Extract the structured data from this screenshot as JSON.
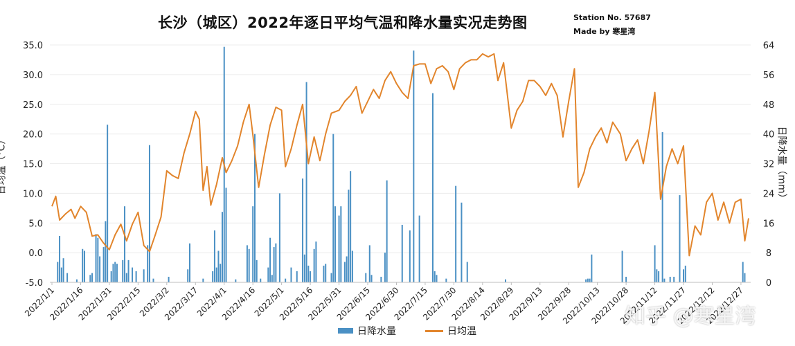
{
  "chart_title": "长沙（城区）2022年逐日平均气温和降水量实况走势图",
  "station_line": "Station No. 57687",
  "maker_line": "Made by 寒星湾",
  "watermark": "知乎 @寒星湾",
  "chart_data": {
    "type": "bar+line",
    "title": "长沙（城区）2022年逐日平均气温和降水量实况走势图",
    "y_left_label": "日均温（°C）",
    "y_right_label": "日降水量（mm）",
    "y_left_ticks": [
      "-5.0",
      "0.0",
      "5.0",
      "10.0",
      "15.0",
      "20.0",
      "25.0",
      "30.0",
      "35.0"
    ],
    "y_right_ticks": [
      "0",
      "8",
      "16",
      "24",
      "32",
      "40",
      "48",
      "56",
      "64"
    ],
    "y_left_range": [
      -5,
      35
    ],
    "y_right_range": [
      0,
      64
    ],
    "x_tick_labels": [
      "2022/1/1",
      "2022/1/16",
      "2022/1/31",
      "2022/2/15",
      "2022/3/2",
      "2022/3/17",
      "2022/4/1",
      "2022/4/16",
      "2022/5/1",
      "2022/5/16",
      "2022/5/31",
      "2022/6/15",
      "2022/6/30",
      "2022/7/15",
      "2022/7/30",
      "2022/8/14",
      "2022/8/29",
      "2022/9/13",
      "2022/9/28",
      "2022/10/13",
      "2022/10/28",
      "2022/11/12",
      "2022/11/27",
      "2022/12/12",
      "2022/12/27"
    ],
    "legend": [
      "日降水量",
      "日均温"
    ],
    "colors": {
      "temperature": "#e2852c",
      "precipitation": "#4a90c4"
    },
    "series": [
      {
        "name": "日均温",
        "kind": "line",
        "axis": "left",
        "points": [
          [
            "2022/1/1",
            7.8
          ],
          [
            "2022/1/3",
            9.5
          ],
          [
            "2022/1/5",
            5.5
          ],
          [
            "2022/1/8",
            6.5
          ],
          [
            "2022/1/11",
            7.3
          ],
          [
            "2022/1/13",
            5.8
          ],
          [
            "2022/1/16",
            7.8
          ],
          [
            "2022/1/19",
            6.8
          ],
          [
            "2022/1/22",
            2.8
          ],
          [
            "2022/1/25",
            3.0
          ],
          [
            "2022/1/28",
            1.6
          ],
          [
            "2022/1/31",
            0.5
          ],
          [
            "2022/2/3",
            3.0
          ],
          [
            "2022/2/6",
            4.8
          ],
          [
            "2022/2/9",
            2.0
          ],
          [
            "2022/2/12",
            4.8
          ],
          [
            "2022/2/15",
            6.8
          ],
          [
            "2022/2/18",
            1.2
          ],
          [
            "2022/2/21",
            0.2
          ],
          [
            "2022/2/24",
            3.0
          ],
          [
            "2022/2/27",
            6.0
          ],
          [
            "2022/3/2",
            13.8
          ],
          [
            "2022/3/5",
            13.0
          ],
          [
            "2022/3/8",
            12.5
          ],
          [
            "2022/3/11",
            16.8
          ],
          [
            "2022/3/14",
            20.0
          ],
          [
            "2022/3/17",
            23.8
          ],
          [
            "2022/3/19",
            22.5
          ],
          [
            "2022/3/21",
            10.5
          ],
          [
            "2022/3/23",
            14.5
          ],
          [
            "2022/3/25",
            8.0
          ],
          [
            "2022/3/28",
            11.5
          ],
          [
            "2022/3/31",
            16.0
          ],
          [
            "2022/4/2",
            13.5
          ],
          [
            "2022/4/5",
            15.5
          ],
          [
            "2022/4/8",
            18.0
          ],
          [
            "2022/4/11",
            22.0
          ],
          [
            "2022/4/14",
            25.0
          ],
          [
            "2022/4/16",
            19.8
          ],
          [
            "2022/4/19",
            11.0
          ],
          [
            "2022/4/22",
            16.5
          ],
          [
            "2022/4/25",
            21.5
          ],
          [
            "2022/4/28",
            24.5
          ],
          [
            "2022/5/1",
            24.0
          ],
          [
            "2022/5/3",
            14.5
          ],
          [
            "2022/5/6",
            17.5
          ],
          [
            "2022/5/9",
            21.5
          ],
          [
            "2022/5/12",
            25.0
          ],
          [
            "2022/5/15",
            15.0
          ],
          [
            "2022/5/18",
            19.5
          ],
          [
            "2022/5/21",
            15.5
          ],
          [
            "2022/5/24",
            20.0
          ],
          [
            "2022/5/27",
            23.5
          ],
          [
            "2022/5/31",
            24.0
          ],
          [
            "2022/6/3",
            25.5
          ],
          [
            "2022/6/6",
            26.5
          ],
          [
            "2022/6/9",
            28.0
          ],
          [
            "2022/6/12",
            23.5
          ],
          [
            "2022/6/15",
            25.5
          ],
          [
            "2022/6/18",
            27.5
          ],
          [
            "2022/6/21",
            26.0
          ],
          [
            "2022/6/24",
            29.0
          ],
          [
            "2022/6/27",
            30.5
          ],
          [
            "2022/6/30",
            28.5
          ],
          [
            "2022/7/3",
            27.0
          ],
          [
            "2022/7/6",
            26.0
          ],
          [
            "2022/7/9",
            31.5
          ],
          [
            "2022/7/12",
            31.8
          ],
          [
            "2022/7/15",
            31.8
          ],
          [
            "2022/7/18",
            28.5
          ],
          [
            "2022/7/21",
            31.0
          ],
          [
            "2022/7/24",
            31.5
          ],
          [
            "2022/7/27",
            30.5
          ],
          [
            "2022/7/30",
            27.5
          ],
          [
            "2022/8/2",
            31.0
          ],
          [
            "2022/8/5",
            32.0
          ],
          [
            "2022/8/8",
            32.5
          ],
          [
            "2022/8/11",
            32.5
          ],
          [
            "2022/8/14",
            33.5
          ],
          [
            "2022/8/17",
            33.0
          ],
          [
            "2022/8/20",
            33.5
          ],
          [
            "2022/8/22",
            29.0
          ],
          [
            "2022/8/25",
            32.0
          ],
          [
            "2022/8/29",
            21.0
          ],
          [
            "2022/9/1",
            24.0
          ],
          [
            "2022/9/4",
            25.5
          ],
          [
            "2022/9/7",
            29.0
          ],
          [
            "2022/9/10",
            29.0
          ],
          [
            "2022/9/13",
            28.0
          ],
          [
            "2022/9/16",
            26.5
          ],
          [
            "2022/9/19",
            28.5
          ],
          [
            "2022/9/22",
            26.5
          ],
          [
            "2022/9/25",
            19.5
          ],
          [
            "2022/9/28",
            25.5
          ],
          [
            "2022/10/1",
            31.0
          ],
          [
            "2022/10/3",
            11.0
          ],
          [
            "2022/10/6",
            13.5
          ],
          [
            "2022/10/9",
            17.5
          ],
          [
            "2022/10/12",
            19.5
          ],
          [
            "2022/10/15",
            21.0
          ],
          [
            "2022/10/18",
            18.5
          ],
          [
            "2022/10/21",
            22.0
          ],
          [
            "2022/10/25",
            20.0
          ],
          [
            "2022/10/28",
            15.5
          ],
          [
            "2022/10/31",
            17.5
          ],
          [
            "2022/11/3",
            19.0
          ],
          [
            "2022/11/6",
            15.0
          ],
          [
            "2022/11/9",
            20.5
          ],
          [
            "2022/11/12",
            27.0
          ],
          [
            "2022/11/15",
            9.0
          ],
          [
            "2022/11/18",
            14.5
          ],
          [
            "2022/11/21",
            17.5
          ],
          [
            "2022/11/24",
            15.0
          ],
          [
            "2022/11/27",
            18.0
          ],
          [
            "2022/11/30",
            -0.5
          ],
          [
            "2022/12/3",
            4.5
          ],
          [
            "2022/12/6",
            3.0
          ],
          [
            "2022/12/9",
            8.5
          ],
          [
            "2022/12/12",
            10.0
          ],
          [
            "2022/12/15",
            5.5
          ],
          [
            "2022/12/18",
            8.5
          ],
          [
            "2022/12/21",
            5.0
          ],
          [
            "2022/12/24",
            8.5
          ],
          [
            "2022/12/27",
            9.0
          ],
          [
            "2022/12/29",
            2.0
          ],
          [
            "2022/12/31",
            5.8
          ]
        ]
      },
      {
        "name": "日降水量",
        "kind": "bar",
        "axis": "right",
        "points": [
          [
            "2022/1/4",
            5.5
          ],
          [
            "2022/1/5",
            12.5
          ],
          [
            "2022/1/6",
            4.0
          ],
          [
            "2022/1/7",
            6.5
          ],
          [
            "2022/1/9",
            2.5
          ],
          [
            "2022/1/14",
            0.8
          ],
          [
            "2022/1/17",
            9.0
          ],
          [
            "2022/1/18",
            8.5
          ],
          [
            "2022/1/21",
            2.0
          ],
          [
            "2022/1/22",
            2.5
          ],
          [
            "2022/1/24",
            13.0
          ],
          [
            "2022/1/25",
            12.0
          ],
          [
            "2022/1/26",
            7.0
          ],
          [
            "2022/1/28",
            9.5
          ],
          [
            "2022/1/29",
            16.5
          ],
          [
            "2022/1/30",
            42.5
          ],
          [
            "2022/2/1",
            3.0
          ],
          [
            "2022/2/2",
            5.0
          ],
          [
            "2022/2/3",
            5.5
          ],
          [
            "2022/2/4",
            5.0
          ],
          [
            "2022/2/7",
            6.0
          ],
          [
            "2022/2/8",
            20.5
          ],
          [
            "2022/2/9",
            2.5
          ],
          [
            "2022/2/10",
            6.0
          ],
          [
            "2022/2/12",
            4.0
          ],
          [
            "2022/2/14",
            3.0
          ],
          [
            "2022/2/18",
            3.5
          ],
          [
            "2022/2/20",
            10.0
          ],
          [
            "2022/2/21",
            37.0
          ],
          [
            "2022/2/23",
            1.0
          ],
          [
            "2022/3/3",
            1.5
          ],
          [
            "2022/3/13",
            3.5
          ],
          [
            "2022/3/14",
            10.5
          ],
          [
            "2022/3/21",
            1.0
          ],
          [
            "2022/3/26",
            3.0
          ],
          [
            "2022/3/27",
            14.0
          ],
          [
            "2022/3/28",
            4.0
          ],
          [
            "2022/3/29",
            8.5
          ],
          [
            "2022/3/30",
            5.0
          ],
          [
            "2022/3/31",
            19.0
          ],
          [
            "2022/4/1",
            63.5
          ],
          [
            "2022/4/2",
            25.5
          ],
          [
            "2022/4/7",
            0.8
          ],
          [
            "2022/4/13",
            10.0
          ],
          [
            "2022/4/14",
            9.0
          ],
          [
            "2022/4/16",
            20.5
          ],
          [
            "2022/4/17",
            40.0
          ],
          [
            "2022/4/18",
            6.0
          ],
          [
            "2022/4/20",
            1.0
          ],
          [
            "2022/4/24",
            4.0
          ],
          [
            "2022/4/25",
            12.0
          ],
          [
            "2022/4/26",
            2.0
          ],
          [
            "2022/4/27",
            9.5
          ],
          [
            "2022/4/28",
            10.5
          ],
          [
            "2022/4/30",
            24.0
          ],
          [
            "2022/5/3",
            1.0
          ],
          [
            "2022/5/6",
            4.0
          ],
          [
            "2022/5/9",
            3.0
          ],
          [
            "2022/5/12",
            28.0
          ],
          [
            "2022/5/13",
            7.5
          ],
          [
            "2022/5/14",
            54.0
          ],
          [
            "2022/5/15",
            4.5
          ],
          [
            "2022/5/16",
            3.0
          ],
          [
            "2022/5/18",
            9.0
          ],
          [
            "2022/5/19",
            11.0
          ],
          [
            "2022/5/23",
            4.5
          ],
          [
            "2022/5/24",
            5.0
          ],
          [
            "2022/5/27",
            2.5
          ],
          [
            "2022/5/28",
            40.0
          ],
          [
            "2022/5/29",
            20.5
          ],
          [
            "2022/5/31",
            18.0
          ],
          [
            "2022/6/1",
            20.5
          ],
          [
            "2022/6/3",
            5.5
          ],
          [
            "2022/6/4",
            7.0
          ],
          [
            "2022/6/5",
            25.0
          ],
          [
            "2022/6/6",
            30.0
          ],
          [
            "2022/6/7",
            8.5
          ],
          [
            "2022/6/14",
            2.5
          ],
          [
            "2022/6/16",
            10.0
          ],
          [
            "2022/6/17",
            2.0
          ],
          [
            "2022/6/22",
            1.5
          ],
          [
            "2022/6/24",
            8.0
          ],
          [
            "2022/6/25",
            27.5
          ],
          [
            "2022/7/3",
            15.5
          ],
          [
            "2022/7/7",
            14.0
          ],
          [
            "2022/7/9",
            62.5
          ],
          [
            "2022/7/12",
            18.0
          ],
          [
            "2022/7/19",
            51.0
          ],
          [
            "2022/7/20",
            3.0
          ],
          [
            "2022/7/21",
            2.0
          ],
          [
            "2022/7/26",
            1.0
          ],
          [
            "2022/7/31",
            26.0
          ],
          [
            "2022/8/3",
            21.5
          ],
          [
            "2022/8/6",
            5.5
          ],
          [
            "2022/8/26",
            0.8
          ],
          [
            "2022/10/7",
            0.8
          ],
          [
            "2022/10/8",
            1.0
          ],
          [
            "2022/10/9",
            1.0
          ],
          [
            "2022/10/10",
            7.5
          ],
          [
            "2022/10/26",
            8.5
          ],
          [
            "2022/10/28",
            1.5
          ],
          [
            "2022/11/12",
            10.0
          ],
          [
            "2022/11/13",
            3.5
          ],
          [
            "2022/11/14",
            3.0
          ],
          [
            "2022/11/16",
            40.5
          ],
          [
            "2022/11/17",
            1.0
          ],
          [
            "2022/11/20",
            1.5
          ],
          [
            "2022/11/22",
            1.5
          ],
          [
            "2022/11/25",
            23.5
          ],
          [
            "2022/11/27",
            3.5
          ],
          [
            "2022/11/28",
            4.5
          ],
          [
            "2022/12/28",
            5.5
          ],
          [
            "2022/12/29",
            2.5
          ]
        ]
      }
    ]
  }
}
